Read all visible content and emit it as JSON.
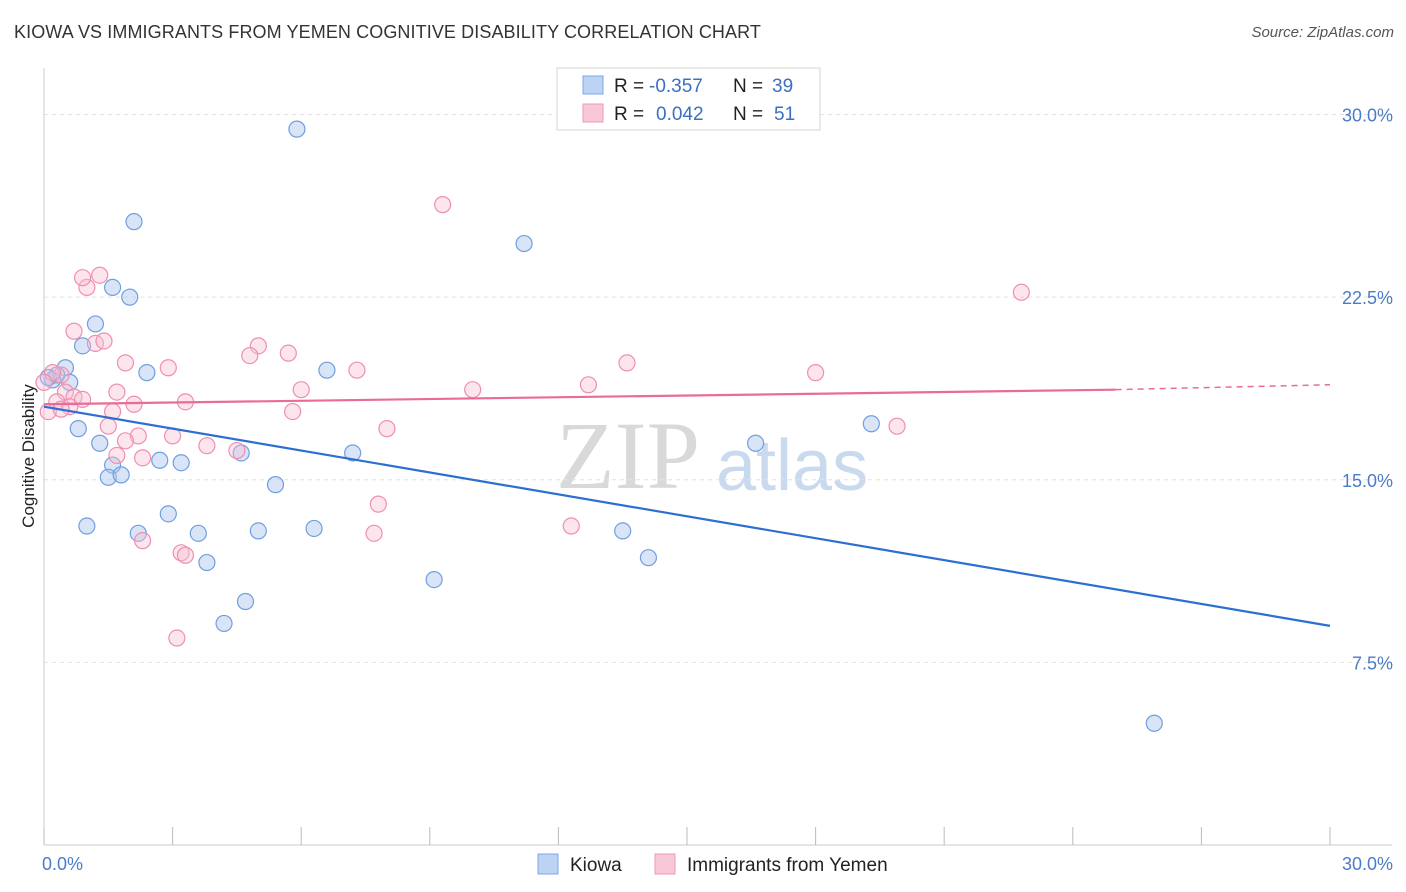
{
  "title": "KIOWA VS IMMIGRANTS FROM YEMEN COGNITIVE DISABILITY CORRELATION CHART",
  "source": "Source: ZipAtlas.com",
  "watermark": {
    "zip": "ZIP",
    "atlas": "atlas"
  },
  "legend": {
    "rows": [
      {
        "r_label": "R =",
        "r_value": "-0.357",
        "n_label": "N =",
        "n_value": "39"
      },
      {
        "r_label": "R =",
        "r_value": "0.042",
        "n_label": "N =",
        "n_value": "51"
      }
    ]
  },
  "bottom_legend": [
    "Kiowa",
    "Immigrants from Yemen"
  ],
  "chart_data": {
    "type": "scatter",
    "title": "KIOWA VS IMMIGRANTS FROM YEMEN COGNITIVE DISABILITY CORRELATION CHART",
    "xlabel": "",
    "ylabel": "Cognitive Disability",
    "xlim": [
      0,
      30
    ],
    "ylim": [
      0,
      31.5
    ],
    "x_tick_labels": [
      "0.0%",
      "30.0%"
    ],
    "y_ticks": [
      7.5,
      15.0,
      22.5,
      30.0
    ],
    "y_tick_labels": [
      "7.5%",
      "15.0%",
      "22.5%",
      "30.0%"
    ],
    "colors": {
      "kiowa": "#6f9fe0",
      "yemen": "#ef8fb0",
      "kiowa_line": "#2c6fd0",
      "yemen_line": "#e96b97"
    },
    "series": [
      {
        "name": "Kiowa",
        "r": -0.357,
        "n": 39,
        "trend": {
          "x": [
            0.0,
            30.0
          ],
          "y": [
            18.0,
            9.0
          ]
        },
        "points": [
          [
            5.9,
            29.4
          ],
          [
            2.1,
            25.6
          ],
          [
            11.2,
            24.7
          ],
          [
            1.6,
            22.9
          ],
          [
            2.0,
            22.5
          ],
          [
            1.2,
            21.4
          ],
          [
            0.9,
            20.5
          ],
          [
            0.5,
            19.6
          ],
          [
            0.3,
            19.3
          ],
          [
            0.6,
            19.0
          ],
          [
            2.4,
            19.4
          ],
          [
            6.6,
            19.5
          ],
          [
            0.2,
            19.1
          ],
          [
            0.8,
            17.1
          ],
          [
            1.3,
            16.5
          ],
          [
            1.6,
            15.6
          ],
          [
            1.5,
            15.1
          ],
          [
            1.8,
            15.2
          ],
          [
            2.7,
            15.8
          ],
          [
            3.2,
            15.7
          ],
          [
            4.6,
            16.1
          ],
          [
            7.2,
            16.1
          ],
          [
            16.6,
            16.5
          ],
          [
            19.3,
            17.3
          ],
          [
            5.4,
            14.8
          ],
          [
            1.0,
            13.1
          ],
          [
            2.9,
            13.6
          ],
          [
            2.2,
            12.8
          ],
          [
            3.6,
            12.8
          ],
          [
            5.0,
            12.9
          ],
          [
            6.3,
            13.0
          ],
          [
            13.5,
            12.9
          ],
          [
            3.8,
            11.6
          ],
          [
            9.1,
            10.9
          ],
          [
            14.1,
            11.8
          ],
          [
            4.7,
            10.0
          ],
          [
            4.2,
            9.1
          ],
          [
            25.9,
            5.0
          ],
          [
            0.1,
            19.2
          ]
        ]
      },
      {
        "name": "Immigrants from Yemen",
        "r": 0.042,
        "n": 51,
        "trend": {
          "x": [
            0.0,
            25.0
          ],
          "y": [
            18.1,
            18.7
          ]
        },
        "trend_dashed": {
          "x": [
            25.0,
            30.0
          ],
          "y": [
            18.7,
            18.9
          ]
        },
        "points": [
          [
            9.3,
            26.3
          ],
          [
            1.3,
            23.4
          ],
          [
            1.0,
            22.9
          ],
          [
            0.9,
            23.3
          ],
          [
            22.8,
            22.7
          ],
          [
            0.7,
            21.1
          ],
          [
            1.2,
            20.6
          ],
          [
            1.4,
            20.7
          ],
          [
            5.0,
            20.5
          ],
          [
            4.8,
            20.1
          ],
          [
            5.7,
            20.2
          ],
          [
            0.4,
            19.3
          ],
          [
            0.2,
            19.4
          ],
          [
            1.9,
            19.8
          ],
          [
            2.9,
            19.6
          ],
          [
            7.3,
            19.5
          ],
          [
            13.6,
            19.8
          ],
          [
            18.0,
            19.4
          ],
          [
            12.7,
            18.9
          ],
          [
            10.0,
            18.7
          ],
          [
            6.0,
            18.7
          ],
          [
            0.5,
            18.6
          ],
          [
            0.7,
            18.4
          ],
          [
            0.3,
            18.2
          ],
          [
            0.6,
            18.0
          ],
          [
            1.7,
            18.6
          ],
          [
            2.1,
            18.1
          ],
          [
            3.3,
            18.2
          ],
          [
            0.1,
            17.8
          ],
          [
            1.6,
            17.8
          ],
          [
            5.8,
            17.8
          ],
          [
            8.0,
            17.1
          ],
          [
            1.5,
            17.2
          ],
          [
            2.2,
            16.8
          ],
          [
            3.0,
            16.8
          ],
          [
            1.9,
            16.6
          ],
          [
            3.8,
            16.4
          ],
          [
            4.5,
            16.2
          ],
          [
            2.3,
            15.9
          ],
          [
            1.7,
            16.0
          ],
          [
            19.9,
            17.2
          ],
          [
            7.8,
            14.0
          ],
          [
            12.3,
            13.1
          ],
          [
            7.7,
            12.8
          ],
          [
            2.3,
            12.5
          ],
          [
            3.2,
            12.0
          ],
          [
            3.3,
            11.9
          ],
          [
            3.1,
            8.5
          ],
          [
            0.0,
            19.0
          ],
          [
            0.9,
            18.3
          ],
          [
            0.4,
            17.9
          ]
        ]
      }
    ]
  }
}
